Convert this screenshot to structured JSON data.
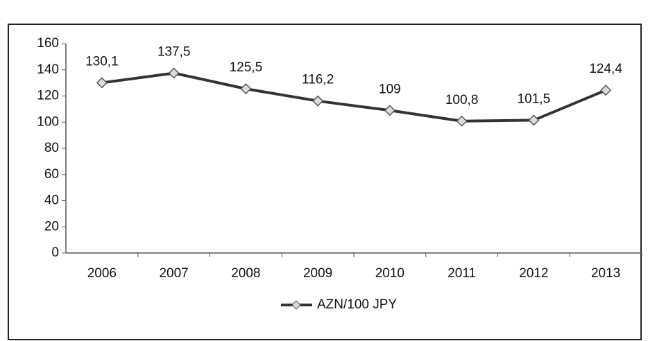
{
  "chart_data": {
    "type": "line",
    "categories": [
      "2006",
      "2007",
      "2008",
      "2009",
      "2010",
      "2011",
      "2012",
      "2013"
    ],
    "series": [
      {
        "name": "AZN/100 JPY",
        "color": "#333333",
        "values": [
          130.1,
          137.5,
          125.5,
          116.2,
          109,
          100.8,
          101.5,
          124.4
        ],
        "value_labels": [
          "130,1",
          "137,5",
          "125,5",
          "116,2",
          "109",
          "100,8",
          "101,5",
          "124,4"
        ]
      }
    ],
    "ylim": [
      0,
      160
    ],
    "yticks": [
      0,
      20,
      40,
      60,
      80,
      100,
      120,
      140,
      160
    ],
    "legend": "bottom"
  }
}
